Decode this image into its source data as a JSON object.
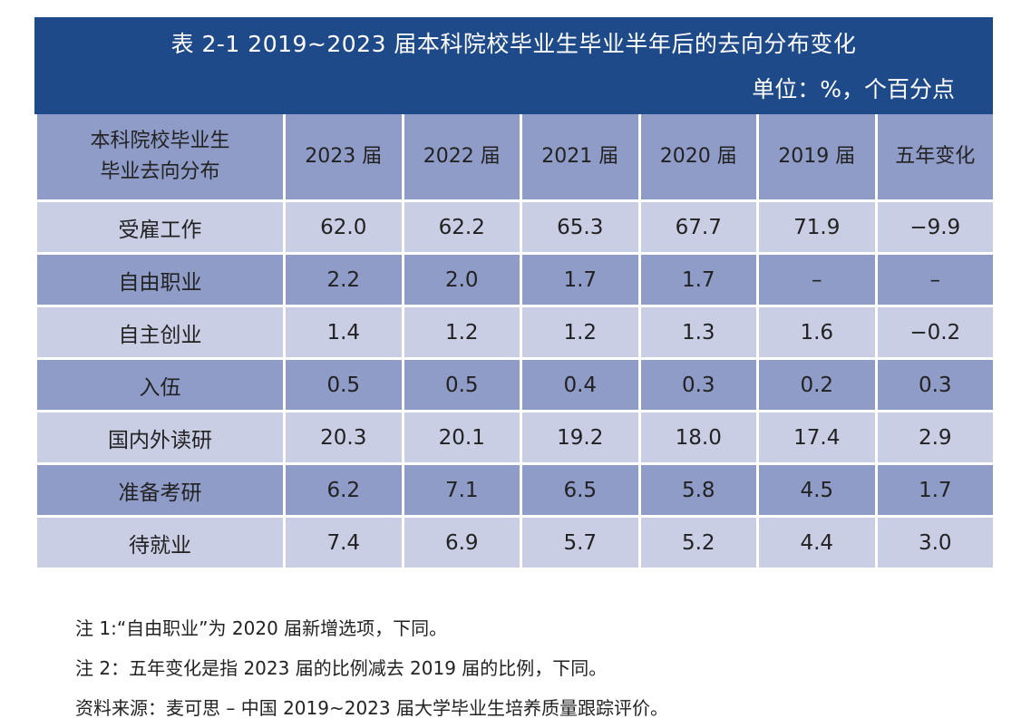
{
  "title": {
    "main": "表 2-1   2019~2023 届本科院校毕业生毕业半年后的去向分布变化",
    "unit": "单位：%，个百分点"
  },
  "table": {
    "headers": [
      "本科院校毕业生\n毕业去向分布",
      "2023 届",
      "2022 届",
      "2021 届",
      "2020 届",
      "2019 届",
      "五年变化"
    ],
    "rows": [
      {
        "label": "受雇工作",
        "cells": [
          "62.0",
          "62.2",
          "65.3",
          "67.7",
          "71.9",
          "−9.9"
        ]
      },
      {
        "label": "自由职业",
        "cells": [
          "2.2",
          "2.0",
          "1.7",
          "1.7",
          "–",
          "–"
        ]
      },
      {
        "label": "自主创业",
        "cells": [
          "1.4",
          "1.2",
          "1.2",
          "1.3",
          "1.6",
          "−0.2"
        ]
      },
      {
        "label": "入伍",
        "cells": [
          "0.5",
          "0.5",
          "0.4",
          "0.3",
          "0.2",
          "0.3"
        ]
      },
      {
        "label": "国内外读研",
        "cells": [
          "20.3",
          "20.1",
          "19.2",
          "18.0",
          "17.4",
          "2.9"
        ]
      },
      {
        "label": "准备考研",
        "cells": [
          "6.2",
          "7.1",
          "6.5",
          "5.8",
          "4.5",
          "1.7"
        ]
      },
      {
        "label": "待就业",
        "cells": [
          "7.4",
          "6.9",
          "5.7",
          "5.2",
          "4.4",
          "3.0"
        ]
      }
    ]
  },
  "notes": [
    "注 1:“自由职业”为 2020 届新增选项，下同。",
    "注 2：五年变化是指 2023 届的比例减去 2019 届的比例，下同。",
    "资料来源：麦可思 – 中国 2019~2023 届大学毕业生培养质量跟踪评价。"
  ],
  "colors": {
    "title_band": "#1f4a8a",
    "row_light": "#c9cee4",
    "row_dark": "#8f9cc8"
  }
}
